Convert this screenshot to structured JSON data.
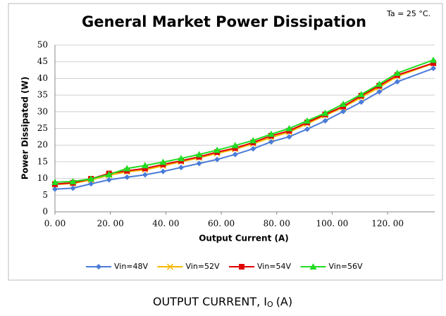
{
  "chart_data": {
    "type": "line",
    "title": "General Market Power Dissipation",
    "annotation": "Ta = 25 °C.",
    "xlabel": "Output Current (A)",
    "ylabel": "Power Dissipated (W)",
    "caption": {
      "text": "OUTPUT CURRENT, I",
      "subscript": "O",
      "unit": "(A)"
    },
    "x": [
      0,
      6.5,
      13,
      19.5,
      26,
      32.5,
      39,
      45.5,
      52,
      58.5,
      65,
      71.5,
      78,
      84.5,
      91,
      97.5,
      104,
      110.5,
      117,
      123.5,
      136.5
    ],
    "series": [
      {
        "name": "Vin=48V",
        "color": "#4a7bd8",
        "marker": "diamond",
        "values": [
          6.8,
          7.1,
          8.4,
          9.6,
          10.4,
          11.1,
          12.1,
          13.3,
          14.5,
          15.7,
          17.2,
          18.9,
          21,
          22.5,
          24.8,
          27.3,
          30.1,
          32.9,
          36,
          39,
          43
        ]
      },
      {
        "name": "Vin=52V",
        "color": "#f5b800",
        "marker": "x",
        "values": [
          8.2,
          8.5,
          9.6,
          11,
          12,
          12.6,
          13.8,
          15,
          16.2,
          17.5,
          18.8,
          20.4,
          22.3,
          23.9,
          26.4,
          28.9,
          31.3,
          34.3,
          37.3,
          40.6,
          44.5
        ]
      },
      {
        "name": "Vin=54V",
        "color": "#e00000",
        "marker": "square",
        "values": [
          8.3,
          8.7,
          9.9,
          11.5,
          12.3,
          13,
          14.2,
          15.3,
          16.5,
          17.9,
          19.1,
          20.8,
          22.8,
          24.3,
          26.8,
          29.2,
          31.6,
          34.8,
          37.8,
          41,
          44.6
        ]
      },
      {
        "name": "Vin=56V",
        "color": "#22dd22",
        "marker": "triangle",
        "values": [
          8.9,
          9.1,
          9.9,
          11.2,
          13,
          13.9,
          14.9,
          16,
          17.2,
          18.5,
          19.9,
          21.4,
          23.3,
          25,
          27.3,
          29.6,
          32.3,
          35.2,
          38.3,
          41.6,
          45.5
        ]
      }
    ],
    "xlim": [
      0,
      137
    ],
    "xticks": [
      {
        "value": 0,
        "label": "0. 00"
      },
      {
        "value": 20,
        "label": "20. 00"
      },
      {
        "value": 40,
        "label": "40. 00"
      },
      {
        "value": 60,
        "label": "60. 00"
      },
      {
        "value": 80,
        "label": "80. 00"
      },
      {
        "value": 100,
        "label": "100. 00"
      },
      {
        "value": 120,
        "label": "120. 00"
      }
    ],
    "ylim": [
      0,
      50
    ],
    "yticks": [
      0,
      5,
      10,
      15,
      20,
      25,
      30,
      35,
      40,
      45,
      50
    ],
    "grid": true,
    "legend": "bottom"
  }
}
